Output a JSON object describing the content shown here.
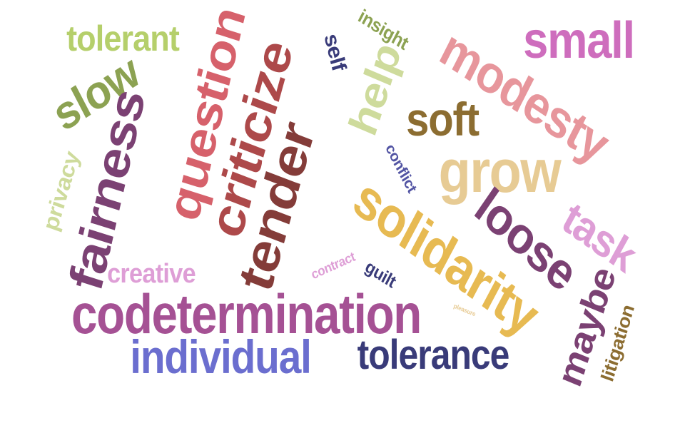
{
  "words": [
    {
      "text": "tolerant",
      "color": "#b5cf6b"
    },
    {
      "text": "slow",
      "color": "#8ca252"
    },
    {
      "text": "fairness",
      "color": "#7b4173"
    },
    {
      "text": "privacy",
      "color": "#cedb9c"
    },
    {
      "text": "question",
      "color": "#d6616b"
    },
    {
      "text": "criticize",
      "color": "#ad494a"
    },
    {
      "text": "tender",
      "color": "#843c39"
    },
    {
      "text": "self",
      "color": "#393b79"
    },
    {
      "text": "insight",
      "color": "#8ca252"
    },
    {
      "text": "help",
      "color": "#cedb9c"
    },
    {
      "text": "modesty",
      "color": "#e7969c"
    },
    {
      "text": "small",
      "color": "#ce6dbd"
    },
    {
      "text": "soft",
      "color": "#8c6d31"
    },
    {
      "text": "grow",
      "color": "#e7cb94"
    },
    {
      "text": "conflict",
      "color": "#5254a3"
    },
    {
      "text": "solidarity",
      "color": "#e7ba52"
    },
    {
      "text": "loose",
      "color": "#7b4173"
    },
    {
      "text": "task",
      "color": "#de9ed6"
    },
    {
      "text": "creative",
      "color": "#de9ed6"
    },
    {
      "text": "contract",
      "color": "#de9ed6"
    },
    {
      "text": "guilt",
      "color": "#393b79"
    },
    {
      "text": "pleasure",
      "color": "#e7cb94"
    },
    {
      "text": "codetermination",
      "color": "#a55194"
    },
    {
      "text": "maybe",
      "color": "#7b4173"
    },
    {
      "text": "litigation",
      "color": "#8c6d31"
    },
    {
      "text": "individual",
      "color": "#6b6ecf"
    },
    {
      "text": "tolerance",
      "color": "#393b79"
    }
  ]
}
